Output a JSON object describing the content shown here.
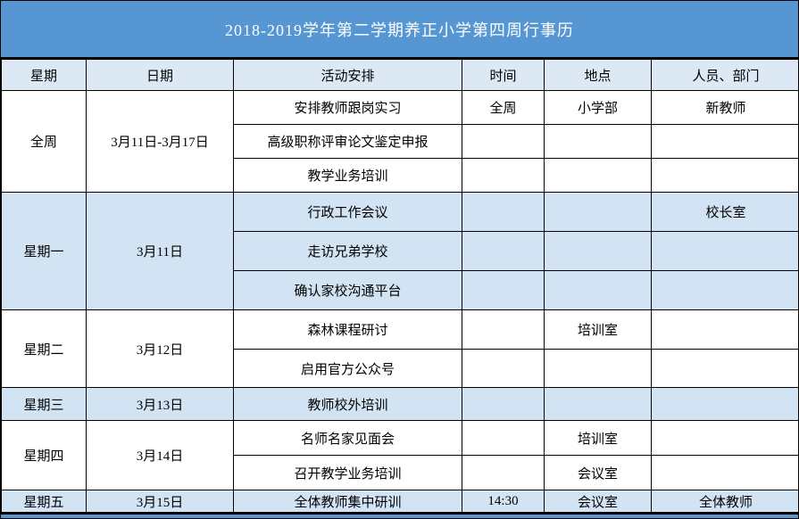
{
  "title": "2018-2019学年第二学期养正小学第四周行事历",
  "columns": [
    "星期",
    "日期",
    "活动安排",
    "时间",
    "地点",
    "人员、部门"
  ],
  "colors": {
    "banner_blue": "#5697D3",
    "header_bg": "#DCE8F3",
    "shaded_row_bg": "#D2E3F3",
    "row_bg": "#FFFFFF",
    "grid_line": "#000000",
    "title_text": "#FFFFFF",
    "body_text": "#000000"
  },
  "blocks": [
    {
      "week": "全周",
      "date": "3月11日-3月17日",
      "shaded": false,
      "rows": [
        {
          "activity": "安排教师跟岗实习",
          "time": "全周",
          "location": "小学部",
          "people": "新教师"
        },
        {
          "activity": "高级职称评审论文鉴定申报",
          "time": "",
          "location": "",
          "people": ""
        },
        {
          "activity": "教学业务培训",
          "time": "",
          "location": "",
          "people": ""
        }
      ]
    },
    {
      "week": "星期一",
      "date": "3月11日",
      "shaded": true,
      "rows": [
        {
          "activity": "行政工作会议",
          "time": "",
          "location": "",
          "people": "校长室"
        },
        {
          "activity": "走访兄弟学校",
          "time": "",
          "location": "",
          "people": ""
        },
        {
          "activity": "确认家校沟通平台",
          "time": "",
          "location": "",
          "people": ""
        }
      ]
    },
    {
      "week": "星期二",
      "date": "3月12日",
      "shaded": false,
      "rows": [
        {
          "activity": "森林课程研讨",
          "time": "",
          "location": "培训室",
          "people": ""
        },
        {
          "activity": "启用官方公众号",
          "time": "",
          "location": "",
          "people": ""
        }
      ]
    },
    {
      "week": "星期三",
      "date": "3月13日",
      "shaded": true,
      "rows": [
        {
          "activity": "教师校外培训",
          "time": "",
          "location": "",
          "people": ""
        }
      ]
    },
    {
      "week": "星期四",
      "date": "3月14日",
      "shaded": false,
      "rows": [
        {
          "activity": "名师名家见面会",
          "time": "",
          "location": "培训室",
          "people": ""
        },
        {
          "activity": "召开教学业务培训",
          "time": "",
          "location": "会议室",
          "people": ""
        }
      ]
    },
    {
      "week": "星期五",
      "date": "3月15日",
      "shaded": true,
      "rows": [
        {
          "activity": "全体教师集中研训",
          "time": "14:30",
          "location": "会议室",
          "people": "全体教师"
        }
      ]
    }
  ]
}
